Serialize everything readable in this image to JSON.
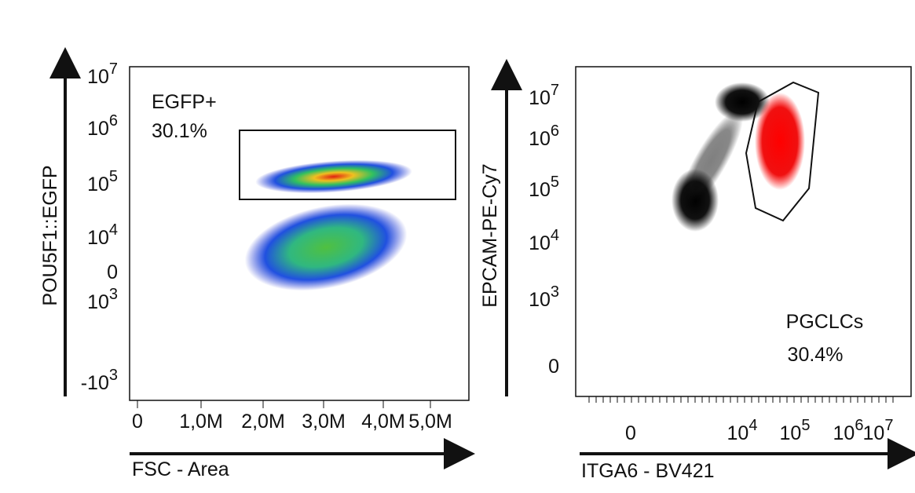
{
  "panels": [
    {
      "y_label": "POU5F1::EGFP",
      "x_label": "FSC - Area",
      "gate_name": "EGFP+",
      "gate_percent": "30.1%",
      "y_ticks": [
        {
          "base": "10",
          "exp": "7"
        },
        {
          "base": "10",
          "exp": "6"
        },
        {
          "base": "10",
          "exp": "5"
        },
        {
          "base": "10",
          "exp": "4"
        },
        {
          "base": "0",
          "exp": null
        },
        {
          "base": "10",
          "exp": "3"
        },
        {
          "base": "-10",
          "exp": "3"
        }
      ],
      "x_ticks": [
        "0",
        "1,0M",
        "2,0M",
        "3,0M",
        "4,0M",
        "5,0M"
      ]
    },
    {
      "y_label": "EPCAM-PE-Cy7",
      "x_label": "ITGA6 - BV421",
      "gate_name": "PGCLCs",
      "gate_percent": "30.4%",
      "y_ticks": [
        {
          "base": "10",
          "exp": "7"
        },
        {
          "base": "10",
          "exp": "6"
        },
        {
          "base": "10",
          "exp": "5"
        },
        {
          "base": "10",
          "exp": "4"
        },
        {
          "base": "10",
          "exp": "3"
        },
        {
          "base": "0",
          "exp": null
        }
      ],
      "x_ticks": [
        {
          "base": "0",
          "exp": null
        },
        {
          "base": "10",
          "exp": "4"
        },
        {
          "base": "10",
          "exp": "5"
        },
        {
          "base": "10",
          "exp": "6"
        },
        {
          "base": "10",
          "exp": "7"
        }
      ]
    }
  ]
}
